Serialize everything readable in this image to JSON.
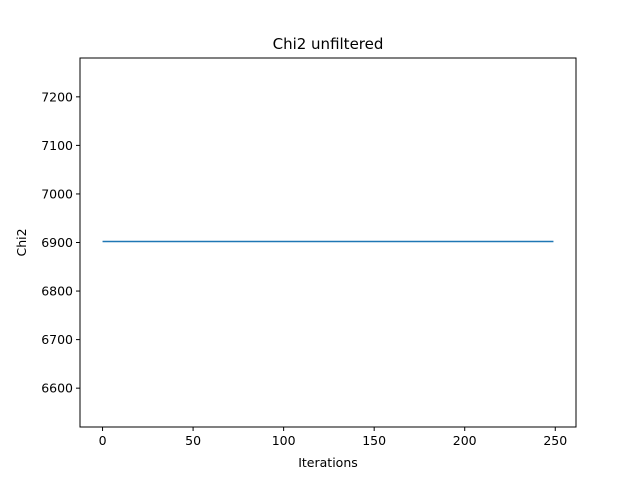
{
  "chart_data": {
    "type": "line",
    "title": "Chi2 unfiltered",
    "xlabel": "Iterations",
    "ylabel": "Chi2",
    "xlim": [
      -12.45,
      261.45
    ],
    "ylim": [
      6520,
      7280
    ],
    "xticks": [
      0,
      50,
      100,
      150,
      200,
      250
    ],
    "yticks": [
      6600,
      6700,
      6800,
      6900,
      7000,
      7100,
      7200
    ],
    "grid": false,
    "series": [
      {
        "x": [
          0,
          249
        ],
        "y": [
          6902,
          6902
        ],
        "color": "#1f77b4"
      }
    ]
  }
}
